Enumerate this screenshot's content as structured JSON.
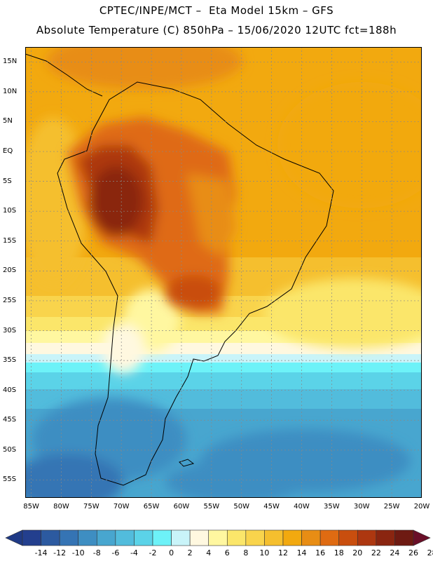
{
  "header": {
    "line1": "CPTEC/INPE/MCT –  Eta Model 15km – GFS",
    "line2": "Absolute Temperature (C) 850hPa – 15/06/2020 12UTC fct=188h"
  },
  "map": {
    "lon_range": [
      -86,
      -20
    ],
    "lat_range": [
      -58,
      17.5
    ],
    "lat_ticks": [
      {
        "value": 15,
        "label": "15N"
      },
      {
        "value": 10,
        "label": "10N"
      },
      {
        "value": 5,
        "label": "5N"
      },
      {
        "value": 0,
        "label": "EQ"
      },
      {
        "value": -5,
        "label": "5S"
      },
      {
        "value": -10,
        "label": "10S"
      },
      {
        "value": -15,
        "label": "15S"
      },
      {
        "value": -20,
        "label": "20S"
      },
      {
        "value": -25,
        "label": "25S"
      },
      {
        "value": -30,
        "label": "30S"
      },
      {
        "value": -35,
        "label": "35S"
      },
      {
        "value": -40,
        "label": "40S"
      },
      {
        "value": -45,
        "label": "45S"
      },
      {
        "value": -50,
        "label": "50S"
      },
      {
        "value": -55,
        "label": "55S"
      }
    ],
    "lon_ticks": [
      {
        "value": -85,
        "label": "85W"
      },
      {
        "value": -80,
        "label": "80W"
      },
      {
        "value": -75,
        "label": "75W"
      },
      {
        "value": -70,
        "label": "70W"
      },
      {
        "value": -65,
        "label": "65W"
      },
      {
        "value": -60,
        "label": "60W"
      },
      {
        "value": -55,
        "label": "55W"
      },
      {
        "value": -50,
        "label": "50W"
      },
      {
        "value": -45,
        "label": "45W"
      },
      {
        "value": -40,
        "label": "40W"
      },
      {
        "value": -35,
        "label": "35W"
      },
      {
        "value": -30,
        "label": "30W"
      },
      {
        "value": -25,
        "label": "25W"
      },
      {
        "value": -20,
        "label": "20W"
      }
    ]
  },
  "colorbar": {
    "colors": [
      "#233f8e",
      "#2c5aa0",
      "#3574b4",
      "#3e8ec2",
      "#48a6cf",
      "#52bcdc",
      "#5bd3e8",
      "#6df2f8",
      "#c9f4f9",
      "#fff8e0",
      "#fff7a0",
      "#fbe66a",
      "#f9d44c",
      "#f5bf2e",
      "#f2a90f",
      "#e88d14",
      "#df6b12",
      "#c94e0e",
      "#ad3710",
      "#8a2510",
      "#6e1a12"
    ],
    "left_arrow_color": "#1f3a86",
    "right_arrow_color": "#6a0f28",
    "labels": [
      "-14",
      "-12",
      "-10",
      "-8",
      "-6",
      "-4",
      "-2",
      "0",
      "2",
      "4",
      "6",
      "8",
      "10",
      "12",
      "14",
      "16",
      "18",
      "20",
      "22",
      "24",
      "26",
      "28"
    ]
  }
}
